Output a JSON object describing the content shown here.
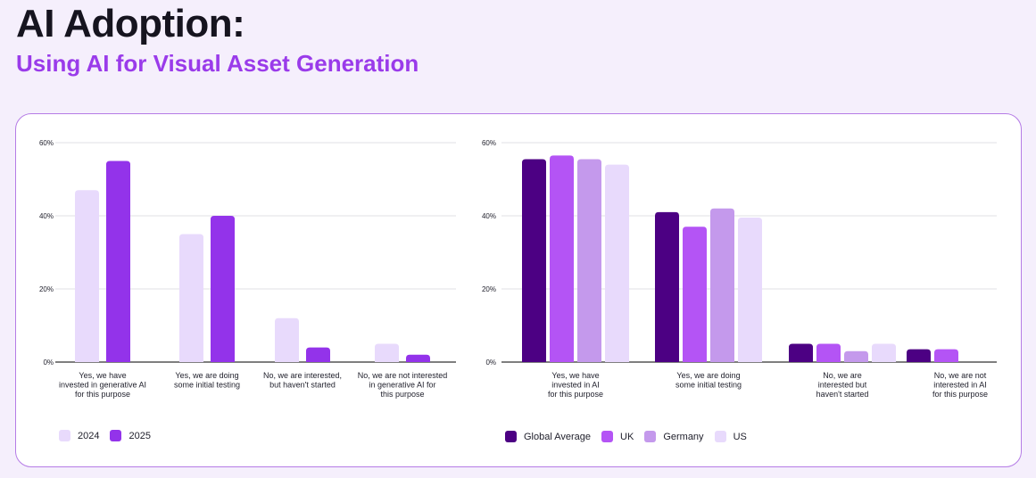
{
  "header": {
    "title": "AI Adoption:",
    "subtitle": "Using AI for Visual Asset Generation"
  },
  "chart_data": [
    {
      "type": "bar",
      "categories": [
        [
          "Yes, we have",
          "invested in generative AI",
          "for this purpose"
        ],
        [
          "Yes, we are doing",
          "some initial testing"
        ],
        [
          "No, we are interested,",
          "but haven't started"
        ],
        [
          "No, we are not interested",
          "in generative AI for",
          "this purpose"
        ]
      ],
      "series": [
        {
          "name": "2024",
          "color": "#e8dafc",
          "values": [
            47,
            35,
            12,
            5
          ]
        },
        {
          "name": "2025",
          "color": "#9333ea",
          "values": [
            55,
            40,
            4,
            2
          ]
        }
      ],
      "yticks": [
        "0%",
        "20%",
        "40%",
        "60%"
      ],
      "ylim": [
        0,
        60
      ]
    },
    {
      "type": "bar",
      "categories": [
        [
          "Yes, we have",
          "invested in AI",
          "for this purpose"
        ],
        [
          "Yes, we are doing",
          "some initial testing"
        ],
        [
          "No, we are",
          "interested but",
          "haven't started"
        ],
        [
          "No, we are not",
          "interested in AI",
          "for this purpose"
        ]
      ],
      "series": [
        {
          "name": "Global Average",
          "color": "#4c0083",
          "values": [
            55.5,
            41,
            5,
            3.5
          ]
        },
        {
          "name": "UK",
          "color": "#b454f5",
          "values": [
            56.5,
            37,
            5,
            3.5
          ]
        },
        {
          "name": "Germany",
          "color": "#c499ec",
          "values": [
            55.5,
            42,
            3,
            null
          ]
        },
        {
          "name": "US",
          "color": "#e8dafc",
          "values": [
            54,
            39.5,
            5,
            null
          ]
        }
      ],
      "yticks": [
        "0%",
        "20%",
        "40%",
        "60%"
      ],
      "ylim": [
        0,
        60
      ]
    }
  ]
}
